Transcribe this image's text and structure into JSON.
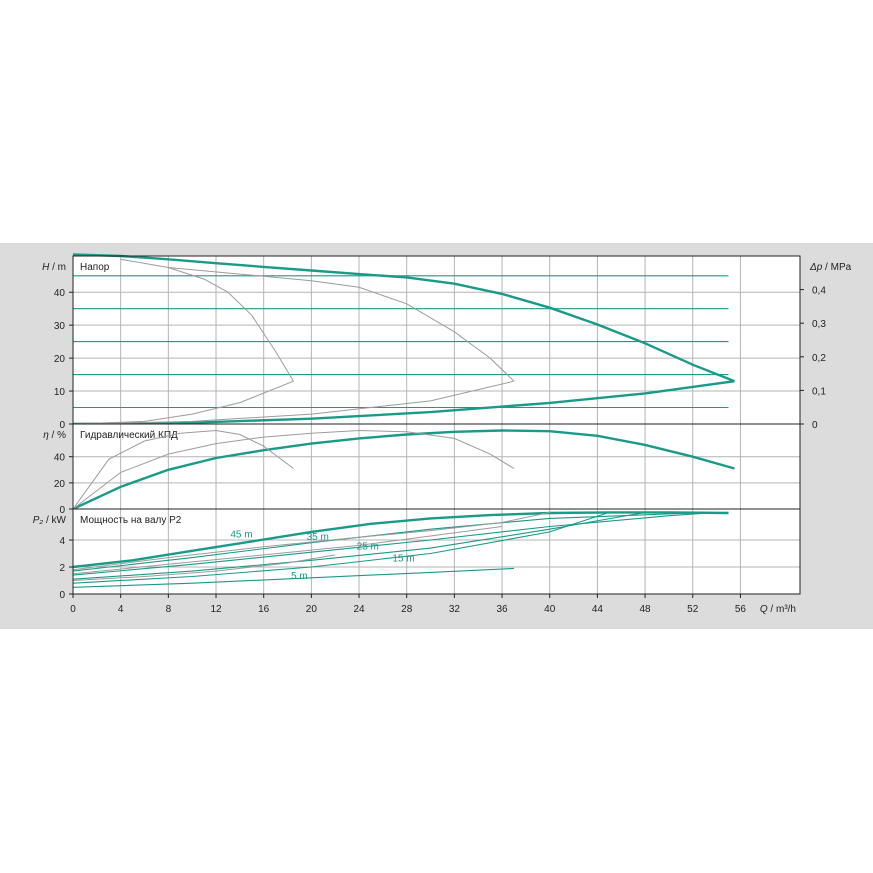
{
  "chart_data": [
    {
      "type": "line",
      "title": "Напор",
      "ylabel_var": "H",
      "ylabel_unit": "m",
      "y2label_var": "Δp",
      "y2label_unit": "MPa",
      "ylim": [
        0,
        51
      ],
      "yticks": [
        0,
        10,
        20,
        30,
        40
      ],
      "y2ticks": [
        "0",
        "0,1",
        "0,2",
        "0,3",
        "0,4"
      ],
      "y2ticks_values": [
        0,
        10.2,
        20.4,
        30.6,
        40.8
      ],
      "grid": true,
      "series": [
        {
          "style": "thick",
          "x": [
            0,
            4,
            8,
            12,
            16,
            20,
            24,
            28,
            32,
            36,
            40,
            44,
            48,
            52,
            55.5
          ],
          "values": [
            51.5,
            51.0,
            50.0,
            48.8,
            47.7,
            46.6,
            45.5,
            44.5,
            42.6,
            39.5,
            35.3,
            30.2,
            24.5,
            18.0,
            13.0
          ]
        },
        {
          "style": "thick",
          "x": [
            0,
            10,
            20,
            30,
            40,
            48,
            55.5
          ],
          "values": [
            0,
            0.4,
            1.6,
            3.6,
            6.4,
            9.3,
            13.0
          ]
        },
        {
          "style": "thin",
          "x": [
            0,
            55
          ],
          "values": [
            45,
            45
          ]
        },
        {
          "style": "thin",
          "x": [
            0,
            55
          ],
          "values": [
            35,
            35
          ]
        },
        {
          "style": "thin",
          "x": [
            0,
            55
          ],
          "values": [
            25,
            25
          ]
        },
        {
          "style": "thin",
          "x": [
            0,
            55
          ],
          "values": [
            15,
            15
          ]
        },
        {
          "style": "thin",
          "x": [
            0,
            55
          ],
          "values": [
            5,
            5
          ]
        },
        {
          "style": "gray",
          "x": [
            4,
            8,
            11,
            13,
            15,
            17,
            18.5
          ],
          "values": [
            50.0,
            47.5,
            44.0,
            40.0,
            33.0,
            22.0,
            13.0
          ]
        },
        {
          "style": "gray",
          "x": [
            0,
            6,
            10,
            14,
            18.5
          ],
          "values": [
            0,
            0.8,
            3.0,
            6.5,
            13.0
          ]
        },
        {
          "style": "gray",
          "x": [
            8,
            14,
            20,
            24,
            28,
            32,
            35,
            37
          ],
          "values": [
            47.5,
            45.5,
            43.5,
            41.5,
            36.5,
            28.0,
            20.0,
            13.0
          ]
        },
        {
          "style": "gray",
          "x": [
            0,
            10,
            20,
            30,
            37
          ],
          "values": [
            0,
            0.8,
            3.0,
            7.0,
            13.0
          ]
        }
      ]
    },
    {
      "type": "line",
      "title": "Гидравлический КПД",
      "ylabel_var": "η",
      "ylabel_unit": "%",
      "ylim": [
        0,
        65
      ],
      "yticks": [
        0,
        20,
        40
      ],
      "grid": true,
      "series": [
        {
          "style": "thick",
          "x": [
            0,
            4,
            8,
            12,
            16,
            20,
            24,
            28,
            32,
            36,
            40,
            44,
            48,
            52,
            55.5
          ],
          "values": [
            0,
            17,
            30,
            39,
            45,
            50,
            54,
            57,
            59,
            60,
            59.5,
            56,
            49,
            40,
            31
          ]
        },
        {
          "style": "gray",
          "x": [
            0,
            3,
            6,
            9,
            12,
            14,
            16,
            18.5
          ],
          "values": [
            0,
            38,
            52,
            58,
            60,
            57,
            48,
            31
          ]
        },
        {
          "style": "gray",
          "x": [
            0,
            4,
            8,
            12,
            16,
            20,
            24,
            28,
            32,
            35,
            37
          ],
          "values": [
            0,
            28,
            42,
            50,
            55,
            58,
            60,
            59,
            54,
            42,
            31
          ]
        }
      ]
    },
    {
      "type": "line",
      "title": "Мощность на валу P2",
      "ylabel_var": "P₂",
      "ylabel_unit": "kW",
      "ylim": [
        0,
        6.3
      ],
      "yticks": [
        0,
        2,
        4
      ],
      "grid": true,
      "xlabel_var": "Q",
      "xlabel_unit": "m³/h",
      "xticks": [
        0,
        4,
        8,
        12,
        16,
        20,
        24,
        28,
        32,
        36,
        40,
        44,
        48,
        52,
        56
      ],
      "xlim": [
        0,
        61
      ],
      "series": [
        {
          "style": "thick",
          "x": [
            0,
            5,
            10,
            15,
            20,
            25,
            30,
            35,
            40,
            45,
            50,
            55
          ],
          "values": [
            2.0,
            2.5,
            3.2,
            3.9,
            4.6,
            5.2,
            5.6,
            5.85,
            6.0,
            6.05,
            6.05,
            6.0
          ]
        },
        {
          "style": "thin",
          "x": [
            0,
            10,
            20,
            30,
            40,
            52,
            55
          ],
          "values": [
            1.7,
            2.7,
            3.8,
            4.8,
            5.6,
            6.0,
            6.05
          ]
        },
        {
          "style": "thin",
          "x": [
            0,
            10,
            20,
            30,
            40,
            50,
            54
          ],
          "values": [
            1.4,
            2.2,
            3.1,
            4.0,
            5.0,
            5.8,
            6.05
          ]
        },
        {
          "style": "thin",
          "x": [
            0,
            10,
            20,
            30,
            40,
            48
          ],
          "values": [
            1.1,
            1.7,
            2.5,
            3.4,
            4.8,
            6.05
          ]
        },
        {
          "style": "thin",
          "x": [
            0,
            10,
            20,
            30,
            40,
            45
          ],
          "values": [
            0.8,
            1.3,
            2.0,
            3.0,
            4.6,
            6.05
          ]
        },
        {
          "style": "thin",
          "x": [
            0,
            10,
            20,
            30,
            37
          ],
          "values": [
            0.5,
            0.8,
            1.2,
            1.6,
            1.9
          ]
        },
        {
          "style": "gray",
          "x": [
            0,
            8,
            16,
            24,
            30,
            36,
            40
          ],
          "values": [
            1.8,
            2.7,
            3.5,
            4.2,
            4.7,
            5.3,
            6.05
          ]
        },
        {
          "style": "gray",
          "x": [
            0,
            8,
            16,
            24,
            30,
            36
          ],
          "values": [
            1.5,
            2.2,
            2.9,
            3.6,
            4.3,
            5.0
          ]
        },
        {
          "style": "gray",
          "x": [
            0,
            6,
            12,
            18,
            22
          ],
          "values": [
            1.0,
            1.3,
            1.7,
            2.3,
            2.9
          ]
        }
      ],
      "annotations": [
        {
          "text": "45 m",
          "x": 13.2,
          "y": 4.2
        },
        {
          "text": "35 m",
          "x": 19.6,
          "y": 4.0
        },
        {
          "text": "25 m",
          "x": 23.8,
          "y": 3.3
        },
        {
          "text": "15 m",
          "x": 26.8,
          "y": 2.4
        },
        {
          "text": "5 m",
          "x": 18.3,
          "y": 1.1
        }
      ]
    }
  ]
}
